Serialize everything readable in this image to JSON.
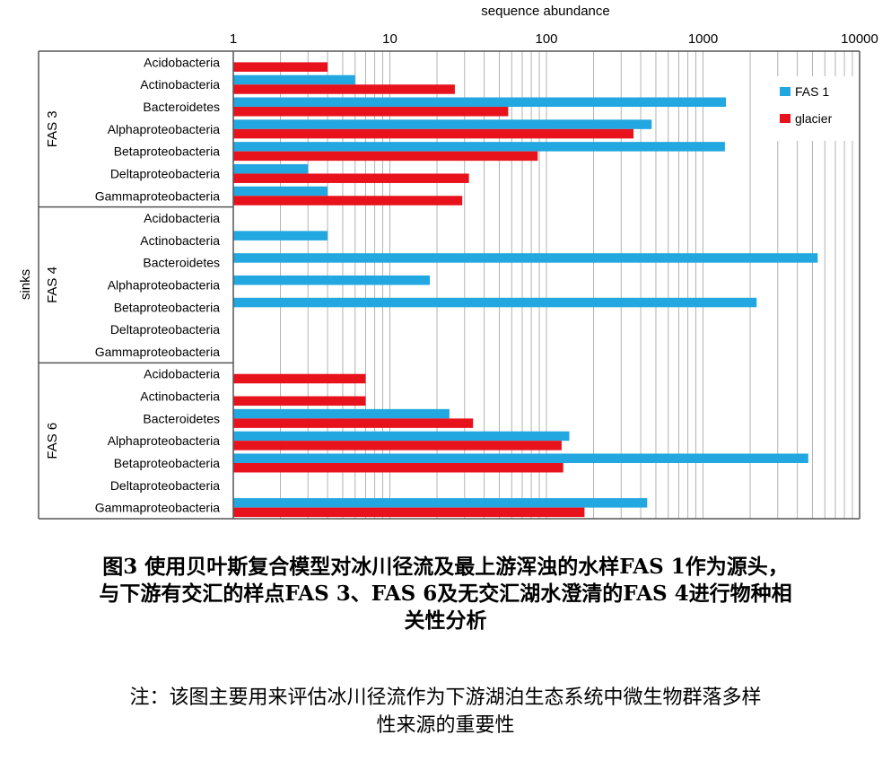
{
  "chart_data": {
    "type": "bar",
    "orientation": "horizontal",
    "title": "",
    "xlabel": "sequence abundance",
    "ylabel": "sinks",
    "xscale": "log",
    "xlim": [
      1,
      10000
    ],
    "x_ticks": [
      "1",
      "10",
      "100",
      "1000",
      "10000"
    ],
    "grid": true,
    "legend_position": "top-right",
    "categories": [
      "Acidobacteria",
      "Actinobacteria",
      "Bacteroidetes",
      "Alphaproteobacteria",
      "Betaproteobacteria",
      "Deltaproteobacteria",
      "Gammaproteobacteria"
    ],
    "groups": [
      {
        "name": "FAS 3",
        "series": [
          {
            "name": "FAS 1",
            "color": "#22a7e0",
            "values": [
              null,
              6,
              1400,
              470,
              1380,
              3,
              4
            ]
          },
          {
            "name": "glacier",
            "color": "#e8121c",
            "values": [
              4,
              26,
              57,
              360,
              88,
              32,
              29
            ]
          }
        ]
      },
      {
        "name": "FAS 4",
        "series": [
          {
            "name": "FAS 1",
            "color": "#22a7e0",
            "values": [
              null,
              4,
              5400,
              18,
              2200,
              null,
              null
            ]
          },
          {
            "name": "glacier",
            "color": "#e8121c",
            "values": [
              null,
              null,
              null,
              null,
              null,
              null,
              null
            ]
          }
        ]
      },
      {
        "name": "FAS 6",
        "series": [
          {
            "name": "FAS 1",
            "color": "#22a7e0",
            "values": [
              null,
              null,
              24,
              140,
              4700,
              null,
              440
            ]
          },
          {
            "name": "glacier",
            "color": "#e8121c",
            "values": [
              7,
              7,
              34,
              125,
              128,
              null,
              175
            ]
          }
        ]
      }
    ]
  },
  "caption": {
    "line1": "图3   使用贝叶斯复合模型对冰川径流及最上游浑浊的水样FAS 1作为源头，",
    "line2": "与下游有交汇的样点FAS 3、FAS 6及无交汇湖水澄清的FAS 4进行物种相",
    "line3": "关性分析"
  },
  "note": {
    "line1": "注：该图主要用来评估冰川径流作为下游湖泊生态系统中微生物群落多样",
    "line2": "性来源的重要性"
  }
}
